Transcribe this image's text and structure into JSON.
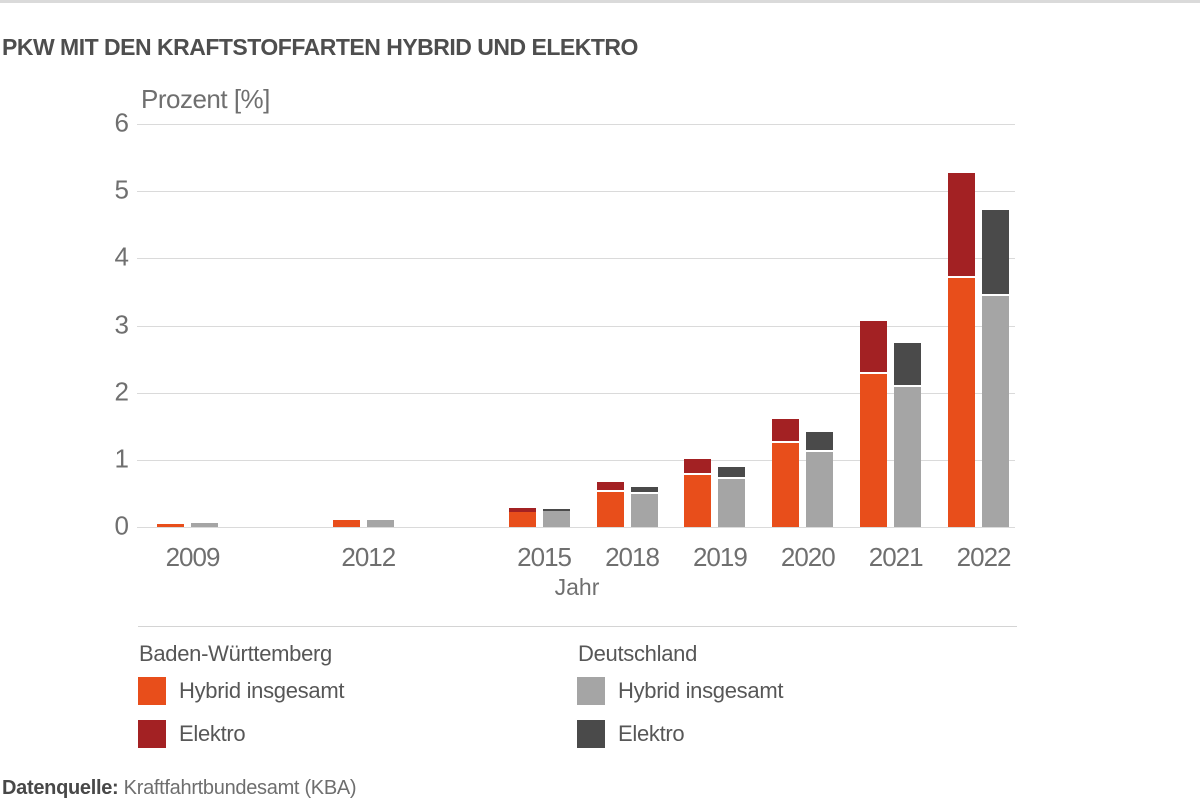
{
  "page": {
    "title": "PKW MIT DEN KRAFTSTOFFARTEN HYBRID UND ELEKTRO",
    "source_label": "Datenquelle:",
    "source_text": " Kraftfahrtbundesamt (KBA)"
  },
  "colors": {
    "bw_hybrid": "#e84e1b",
    "bw_elektro": "#a32123",
    "de_hybrid": "#a5a5a5",
    "de_elektro": "#4a4a4a",
    "gridline": "#dadada",
    "axis_text": "#6f6f6f"
  },
  "legend": {
    "col1_heading": "Baden-Württemberg",
    "col2_heading": "Deutschland",
    "col1_hybrid_label": "Hybrid insgesamt",
    "col1_elektro_label": "Elektro",
    "col2_hybrid_label": "Hybrid insgesamt",
    "col2_elektro_label": "Elektro"
  },
  "chart_data": {
    "type": "bar",
    "stacked": true,
    "grouped": true,
    "title": "PKW MIT DEN KRAFTSTOFFARTEN HYBRID UND ELEKTRO",
    "ylabel": "Prozent [%]",
    "xlabel": "Jahr",
    "ylim": [
      0,
      6
    ],
    "yticks": [
      6,
      5,
      4,
      3,
      2,
      1,
      0
    ],
    "grid": true,
    "legend_position": "bottom",
    "categories": [
      "2009",
      "2012",
      "2015",
      "2018",
      "2019",
      "2020",
      "2021",
      "2022"
    ],
    "category_slots": [
      0,
      2,
      4,
      5,
      6,
      7,
      8,
      9
    ],
    "series": [
      {
        "name": "Baden-Württemberg Hybrid insgesamt",
        "group": "bw",
        "part": "hybrid",
        "values": [
          0.05,
          0.1,
          0.23,
          0.52,
          0.78,
          1.25,
          2.28,
          3.71
        ]
      },
      {
        "name": "Baden-Württemberg Elektro",
        "group": "bw",
        "part": "elektro",
        "values": [
          0,
          0,
          0.06,
          0.15,
          0.24,
          0.35,
          0.79,
          1.56
        ]
      },
      {
        "name": "Deutschland Hybrid insgesamt",
        "group": "de",
        "part": "hybrid",
        "values": [
          0.06,
          0.11,
          0.24,
          0.49,
          0.72,
          1.12,
          2.08,
          3.44
        ]
      },
      {
        "name": "Deutschland Elektro",
        "group": "de",
        "part": "elektro",
        "values": [
          0,
          0,
          0.03,
          0.11,
          0.18,
          0.3,
          0.65,
          1.28
        ]
      }
    ]
  }
}
